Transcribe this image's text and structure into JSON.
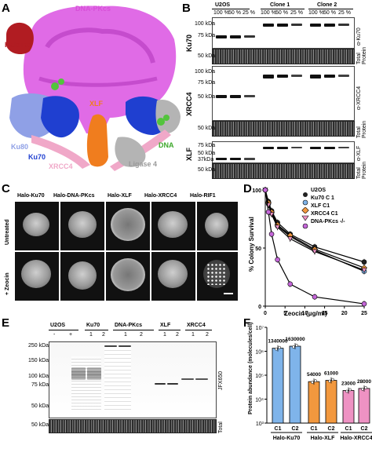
{
  "panels": {
    "a": "A",
    "b": "B",
    "c": "C",
    "d": "D",
    "e": "E",
    "f": "F"
  },
  "structure_labels": {
    "dnapkcs": "DNA-PKcs",
    "halotag": "HaloTag",
    "xlf": "XLF",
    "dna": "DNA",
    "ku80": "Ku80",
    "ku70": "Ku70",
    "xrcc4": "XRCC4",
    "ligase4": "Ligase 4"
  },
  "colors": {
    "dnapkcs": "#e06be6",
    "halotag": "#b11c22",
    "ku70": "#1f3fd0",
    "ku80": "#8fa0e6",
    "xlf": "#f07d1e",
    "dna": "#52c43c",
    "xrcc4": "#f0a8c8",
    "ligase4": "#b4b4b4",
    "u2os": "#222222",
    "ku70c1": "#7fb4ea",
    "xlfc1": "#f2983e",
    "xrcc4c1": "#ee92c3",
    "dnapkko": "#c466d8"
  },
  "blot_b": {
    "groups": [
      "U2OS",
      "Clone 1",
      "Clone 2"
    ],
    "pcts": [
      "100 %",
      "50 %",
      "25 %",
      "100 %",
      "50 %",
      "25 %",
      "100 %",
      "50 %",
      "25 %"
    ],
    "rows": [
      {
        "name": "Ku70",
        "kda": [
          "100 kDa",
          "75 kDa"
        ],
        "tp_kda": "50 kDa",
        "ab": "α-Ku70",
        "tp": "Total Protein"
      },
      {
        "name": "XRCC4",
        "kda": [
          "100 kDa",
          "75 kDa",
          "50 kDa"
        ],
        "tp_kda": "50 kDa",
        "ab": "α-XRCC4",
        "tp": "Total Protein"
      },
      {
        "name": "XLF",
        "kda": [
          "75 kDa",
          "50 kDa",
          "37kDa"
        ],
        "tp_kda": "50 kDa",
        "ab": "α-XLF",
        "tp": "Total Protein"
      }
    ]
  },
  "micro_c": {
    "cols": [
      "Halo-Ku70",
      "Halo-DNA-PKcs",
      "Halo-XLF",
      "Halo-XRCC4",
      "Halo-RIF1"
    ],
    "rows": [
      "Untreated",
      "+ Zeocin"
    ]
  },
  "chart_data": [
    {
      "type": "line",
      "xlabel": "Zeocin (μg/ml)",
      "ylabel": "% Colony Survival",
      "xlim": [
        0,
        25
      ],
      "ylim": [
        0,
        100
      ],
      "xticks": [
        0,
        5,
        10,
        15,
        20,
        25
      ],
      "yticks": [
        0,
        50,
        100
      ],
      "series": [
        {
          "name": "U2OS",
          "x": [
            0,
            0.8,
            1.6,
            3.1,
            6.3,
            12.5,
            25
          ],
          "y": [
            100,
            90,
            82,
            72,
            62,
            51,
            38
          ]
        },
        {
          "name": "Ku70 C 1",
          "x": [
            0,
            0.8,
            1.6,
            3.1,
            6.3,
            12.5,
            25
          ],
          "y": [
            100,
            88,
            80,
            69,
            60,
            48,
            30
          ]
        },
        {
          "name": "XLF C1",
          "x": [
            0,
            0.8,
            1.6,
            3.1,
            6.3,
            12.5,
            25
          ],
          "y": [
            100,
            89,
            81,
            70,
            61,
            49,
            33
          ]
        },
        {
          "name": "XRCC4 C1",
          "x": [
            0,
            0.8,
            1.6,
            3.1,
            6.3,
            12.5,
            25
          ],
          "y": [
            100,
            87,
            79,
            68,
            58,
            47,
            31
          ]
        },
        {
          "name": "DNA-PKcs -/-",
          "x": [
            0,
            0.8,
            1.6,
            3.1,
            6.3,
            12.5,
            25
          ],
          "y": [
            100,
            81,
            62,
            40,
            19,
            8,
            2
          ]
        }
      ]
    },
    {
      "type": "bar",
      "ylabel": "Protein abundance (molecules/cell)",
      "yscale": "log",
      "ylim": [
        1000,
        10000000
      ],
      "ytick_labels": [
        "10³",
        "10⁴",
        "10⁵",
        "10⁶",
        "10⁷"
      ],
      "categories": [
        "C1",
        "C2",
        "C1",
        "C2",
        "C1",
        "C2"
      ],
      "groups": [
        "Halo-Ku70",
        "Halo-XLF",
        "Halo-XRCC4"
      ],
      "values": [
        1340000,
        1630000,
        54000,
        61000,
        23000,
        28000
      ],
      "value_labels": [
        "1340000",
        "1630000",
        "54000",
        "61000",
        "23000",
        "28000"
      ]
    }
  ],
  "gel_e": {
    "groups": [
      "U2OS",
      "Ku70",
      "DNA-PKcs",
      "XLF",
      "XRCC4"
    ],
    "lanes": [
      "-",
      "+",
      "1",
      "2",
      "1",
      "2",
      "1",
      "2",
      "1",
      "2"
    ],
    "kda": [
      "250 kDa",
      "150 kDa",
      "100 kDa",
      "75 kDa",
      "50 kDa"
    ],
    "tp_kda": "50 kDa",
    "side": "JFX650",
    "total": "Total"
  }
}
